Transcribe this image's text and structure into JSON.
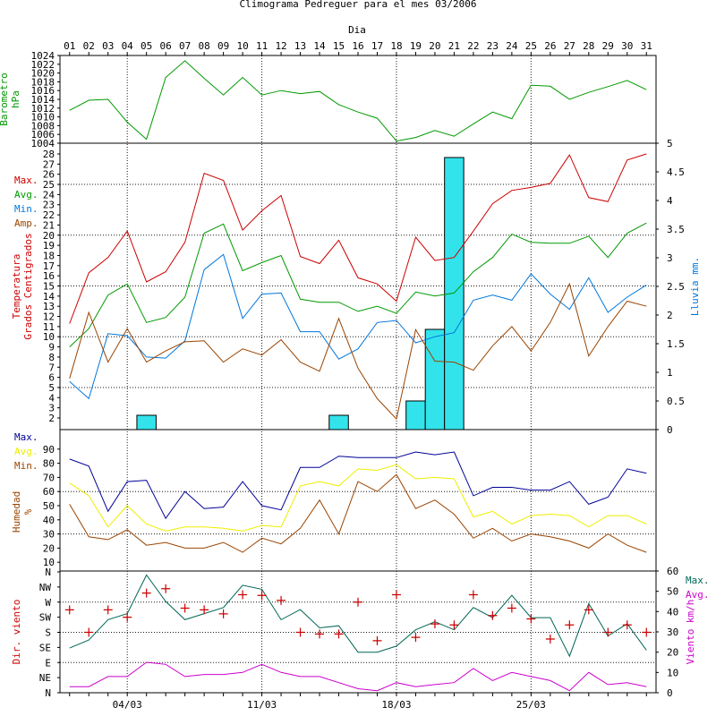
{
  "chart_data": {
    "title": "Climograma Pedreguer para el mes 03/2006",
    "xlabel": "Dia",
    "type": "line",
    "days": [
      "01",
      "02",
      "03",
      "04",
      "05",
      "06",
      "07",
      "08",
      "09",
      "10",
      "11",
      "12",
      "13",
      "14",
      "15",
      "16",
      "17",
      "18",
      "19",
      "20",
      "21",
      "22",
      "23",
      "24",
      "25",
      "26",
      "27",
      "28",
      "29",
      "30",
      "31"
    ],
    "bottom_labels": [
      "04/03",
      "11/03",
      "18/03",
      "25/03"
    ],
    "colors": {
      "red": "#cc0000",
      "green": "#009900",
      "blue": "#0077dd",
      "brown": "#994400",
      "navy": "#000099",
      "yellow": "#eeee00",
      "magenta": "#cc00cc",
      "teal": "#006655",
      "cyan": "#33e3eb"
    },
    "panels": [
      {
        "ylabel": "Barometro hPa",
        "ylim": [
          1004,
          1024
        ],
        "ticks": [
          "1024",
          "1022",
          "1020",
          "1018",
          "1016",
          "1014",
          "1012",
          "1010",
          "1008",
          "1006",
          "1004"
        ],
        "series": [
          {
            "values": [
              1011.5,
              1013.8,
              1014,
              1008.8,
              1004.9,
              1019,
              1022.8,
              1018.8,
              1015,
              1019,
              1015,
              1016,
              1015.3,
              1015.8,
              1012.8,
              1011.1,
              1009.7,
              1004.5,
              1005.3,
              1006.9,
              1005.6,
              1008.4,
              1011.1,
              1009.6,
              1017.2,
              1017.0,
              1014.0,
              1015.6,
              1016.9,
              1018.3,
              1016.2
            ]
          }
        ]
      },
      {
        "ylabel": "Temperatura Grados Centigrados",
        "ylim": [
          2,
          28
        ],
        "ticks": [
          "28",
          "27",
          "26",
          "25",
          "24",
          "23",
          "22",
          "21",
          "20",
          "19",
          "18",
          "17",
          "16",
          "15",
          "14",
          "13",
          "12",
          "11",
          "10",
          "9",
          "8",
          "7",
          "6",
          "5",
          "4",
          "3",
          "2"
        ],
        "legend": [
          "Max.",
          "Avg.",
          "Min.",
          "Amp."
        ],
        "y2label": "Lluvia mm.",
        "y2lim": [
          0,
          5
        ],
        "y2ticks": [
          "5",
          "4.5",
          "4",
          "3.5",
          "3",
          "2.5",
          "2",
          "1.5",
          "1",
          "0.5",
          "0"
        ],
        "rain": [
          0,
          0,
          0,
          0,
          0.25,
          0,
          0,
          0,
          0,
          0,
          0,
          0,
          0,
          0,
          0.25,
          0,
          0,
          0,
          0.5,
          1.75,
          4.75,
          0,
          0,
          0,
          0,
          0,
          0,
          0,
          0,
          0,
          0
        ],
        "series": [
          {
            "name": "Max.",
            "values": [
              11.3,
              16.3,
              17.8,
              20.4,
              15.4,
              16.4,
              19.3,
              26.1,
              25.4,
              20.5,
              22.4,
              23.9,
              17.9,
              17.2,
              19.5,
              15.8,
              15.2,
              13.5,
              19.8,
              17.5,
              17.8,
              20.4,
              23.1,
              24.4,
              24.7,
              25.1,
              27.9,
              23.7,
              23.3,
              27.4,
              28.0
            ]
          },
          {
            "name": "Avg.",
            "values": [
              9.0,
              10.8,
              14.1,
              15.2,
              11.4,
              11.9,
              13.9,
              20.2,
              21.1,
              16.5,
              17.3,
              18.0,
              13.7,
              13.4,
              13.4,
              12.5,
              13.0,
              12.3,
              14.4,
              14.0,
              14.3,
              16.4,
              17.8,
              20.1,
              19.3,
              19.2,
              19.2,
              19.9,
              17.8,
              20.2,
              21.2
            ]
          },
          {
            "name": "Min.",
            "values": [
              5.6,
              3.9,
              10.3,
              10.1,
              8.0,
              7.9,
              9.6,
              16.6,
              18.1,
              11.8,
              14.2,
              14.3,
              10.5,
              10.5,
              7.8,
              8.8,
              11.4,
              11.6,
              9.4,
              10.0,
              10.4,
              13.6,
              14.1,
              13.6,
              16.2,
              14.2,
              12.7,
              15.8,
              12.4,
              13.9,
              15.1
            ]
          },
          {
            "name": "Amp.",
            "values": [
              5.9,
              12.4,
              7.5,
              10.8,
              7.5,
              8.6,
              9.5,
              9.6,
              7.5,
              8.8,
              8.2,
              9.7,
              7.5,
              6.6,
              11.8,
              6.9,
              3.9,
              1.9,
              10.7,
              7.6,
              7.5,
              6.7,
              9.1,
              11.0,
              8.6,
              11.4,
              15.2,
              8.1,
              11.0,
              13.5,
              13.0
            ]
          }
        ]
      },
      {
        "ylabel": "Humedad %",
        "ylim": [
          0,
          100
        ],
        "ticks": [
          "90",
          "80",
          "70",
          "60",
          "50",
          "40",
          "30",
          "20",
          "10"
        ],
        "legend": [
          "Max.",
          "Avg.",
          "Min."
        ],
        "series": [
          {
            "name": "Max.",
            "values": [
              83,
              78,
              46,
              67,
              68,
              41,
              60,
              48,
              49,
              67,
              50,
              47,
              77,
              77,
              85,
              84,
              84,
              84,
              88,
              86,
              88,
              57,
              63,
              63,
              61,
              61,
              67,
              51,
              56,
              76,
              73
            ]
          },
          {
            "name": "Avg.",
            "values": [
              66,
              57,
              35,
              50,
              37,
              32,
              35,
              35,
              34,
              32,
              36,
              35,
              64,
              67,
              64,
              76,
              75,
              79,
              69,
              70,
              69,
              42,
              46,
              37,
              43,
              44,
              43,
              35,
              43,
              43,
              37
            ]
          },
          {
            "name": "Min.",
            "values": [
              51,
              28,
              26,
              33,
              22,
              24,
              20,
              20,
              24,
              17,
              27,
              23,
              34,
              54,
              30,
              67,
              60,
              72,
              48,
              54,
              44,
              27,
              34,
              25,
              30,
              28,
              25,
              20,
              30,
              22,
              17
            ]
          }
        ]
      },
      {
        "ylabel": "Dir. viento",
        "y2label": "Viento km/h",
        "legend": [
          "Max.",
          "Avg."
        ],
        "dirs": [
          "N",
          "NE",
          "E",
          "SE",
          "S",
          "SW",
          "W",
          "NW",
          "N"
        ],
        "y2lim": [
          0,
          60
        ],
        "y2ticks": [
          "60",
          "50",
          "40",
          "30",
          "20",
          "10",
          "0"
        ],
        "direction_deg": [
          247,
          180,
          247,
          225,
          297,
          310,
          252,
          247,
          235,
          292,
          290,
          275,
          180,
          175,
          175,
          270,
          155,
          292,
          165,
          205,
          202,
          292,
          230,
          252,
          220,
          160,
          202,
          247,
          180,
          202,
          180
        ],
        "series": [
          {
            "name": "Max.",
            "values": [
              22,
              26,
              36,
              39,
              58,
              45,
              36,
              39,
              42,
              53,
              51,
              36,
              41,
              32,
              33,
              20,
              20,
              23,
              31,
              35,
              31,
              42,
              37,
              48,
              37,
              37,
              18,
              44,
              28,
              34,
              21
            ]
          },
          {
            "name": "Avg.",
            "values": [
              3,
              3,
              8,
              8,
              15,
              14,
              8,
              9,
              9,
              10,
              14,
              10,
              8,
              8,
              5,
              2,
              1,
              5,
              3,
              4,
              5,
              12,
              6,
              10,
              8,
              6,
              1,
              10,
              4,
              5,
              3
            ]
          }
        ]
      }
    ]
  }
}
